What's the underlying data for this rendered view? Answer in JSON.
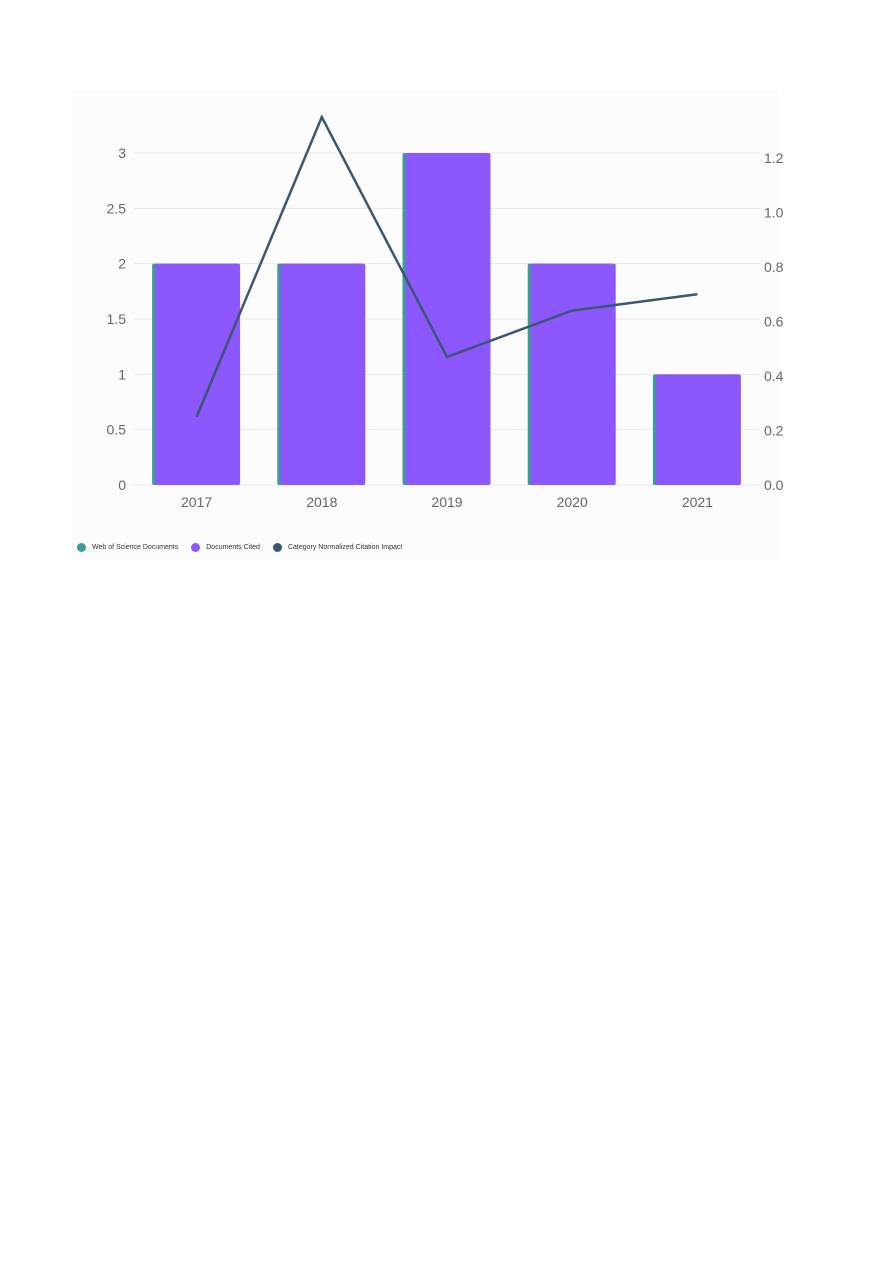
{
  "chart_data": {
    "type": "bar",
    "categories": [
      "2017",
      "2018",
      "2019",
      "2020",
      "2021"
    ],
    "series": [
      {
        "name": "Web of Science Documents",
        "type": "bar",
        "axis": "left",
        "color": "#3c9c96",
        "values": [
          2,
          2,
          3,
          2,
          1
        ]
      },
      {
        "name": "Documents Cited",
        "type": "bar",
        "axis": "left",
        "color": "#8c57fc",
        "values": [
          2,
          2,
          3,
          2,
          1
        ]
      },
      {
        "name": "Category Normalized Citation Impact",
        "type": "line",
        "axis": "right",
        "color": "#3a5673",
        "values": [
          0.25,
          1.35,
          0.47,
          0.64,
          0.7
        ]
      }
    ],
    "y_left": {
      "ticks": [
        0,
        0.5,
        1,
        1.5,
        2,
        2.5,
        3
      ],
      "tick_labels": [
        "0",
        "0.5",
        "1",
        "1.5",
        "2",
        "2.5",
        "3"
      ],
      "range": [
        0,
        3
      ]
    },
    "y_right": {
      "ticks": [
        0,
        0.2,
        0.4,
        0.6,
        0.8,
        1.0,
        1.2
      ],
      "tick_labels": [
        "0.0",
        "0.2",
        "0.4",
        "0.6",
        "0.8",
        "1.0",
        "1.2"
      ],
      "range": [
        0,
        1.2
      ]
    },
    "grid": true,
    "legend_position": "bottom-left",
    "gridline_color": "#e8e8e8"
  },
  "legend": {
    "items": [
      {
        "label": "Web of Science Documents",
        "color": "#3c9c96"
      },
      {
        "label": "Documents Cited",
        "color": "#8c57fc"
      },
      {
        "label": "Category Normalized Citation Impact",
        "color": "#3a5673"
      }
    ]
  }
}
